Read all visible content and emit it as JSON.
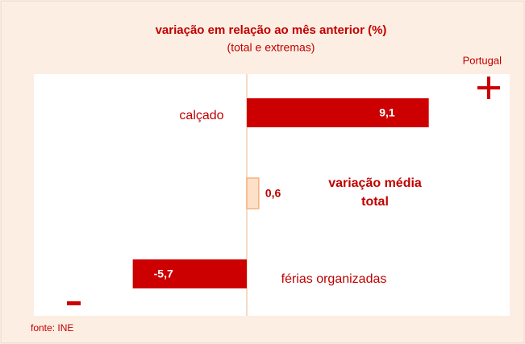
{
  "chart_data": {
    "type": "bar",
    "orientation": "horizontal",
    "title": "variação em relação ao mês anterior (%)",
    "subtitle": "(total e extremas)",
    "region": "Portugal",
    "source": "fonte: INE",
    "categories": [
      "calçado",
      "variação média total",
      "férias organizadas"
    ],
    "values": [
      9.1,
      0.6,
      -5.7
    ],
    "value_labels": [
      "9,1",
      "0,6",
      "-5,7"
    ],
    "color": "#cc0000",
    "total_color": "#fde0c8"
  }
}
